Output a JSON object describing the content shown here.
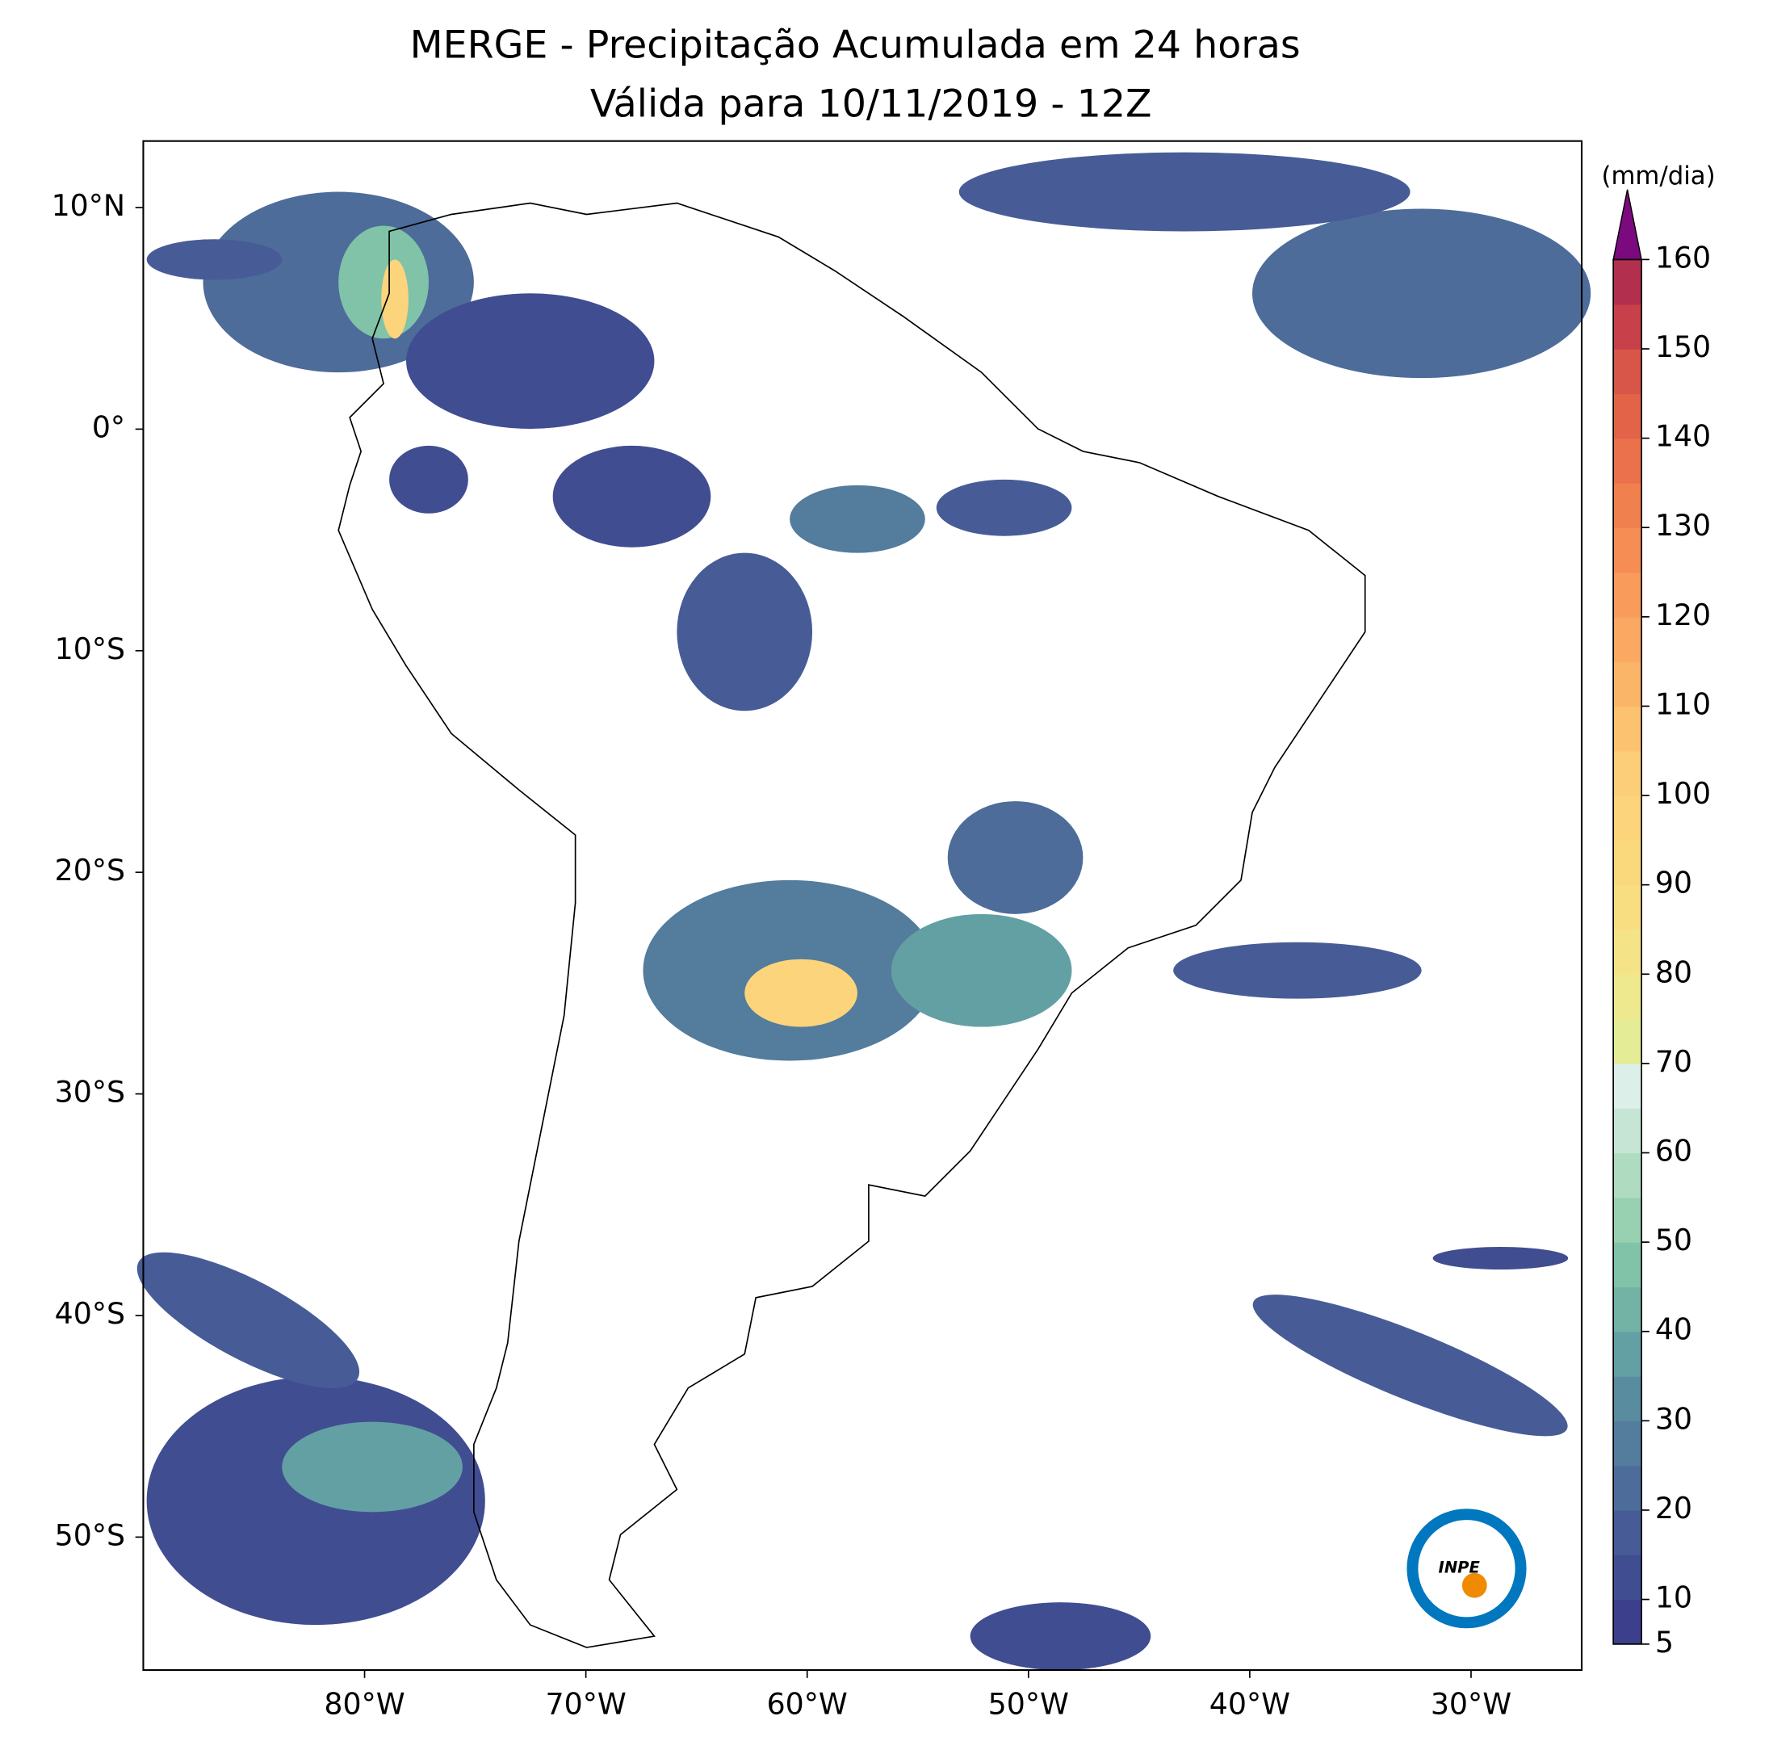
{
  "map": {
    "title": "MERGE - Precipitação Acumulada em 24 horas",
    "subtitle": "Válida para 10/11/2019 - 12Z",
    "xlim": [
      -90,
      -25
    ],
    "ylim": [
      -56,
      13
    ],
    "xticks": [
      {
        "value": -80,
        "label": "80°W"
      },
      {
        "value": -70,
        "label": "70°W"
      },
      {
        "value": -60,
        "label": "60°W"
      },
      {
        "value": -50,
        "label": "50°W"
      },
      {
        "value": -40,
        "label": "40°W"
      },
      {
        "value": -30,
        "label": "30°W"
      }
    ],
    "yticks": [
      {
        "value": 10,
        "label": "10°N"
      },
      {
        "value": 0,
        "label": "0°"
      },
      {
        "value": -10,
        "label": "10°S"
      },
      {
        "value": -20,
        "label": "20°S"
      },
      {
        "value": -30,
        "label": "30°S"
      },
      {
        "value": -40,
        "label": "40°S"
      },
      {
        "value": -50,
        "label": "50°S"
      }
    ],
    "colorbar": {
      "label": "(mm/dia)",
      "lim": [
        5,
        160
      ],
      "ticks": [
        5,
        10,
        20,
        30,
        40,
        50,
        60,
        70,
        80,
        90,
        100,
        110,
        120,
        130,
        140,
        150,
        160
      ],
      "colors": [
        "#3b3f8c",
        "#414d91",
        "#475c96",
        "#4d6c9a",
        "#537c9d",
        "#5a8ca0",
        "#63a0a4",
        "#72b3a6",
        "#80c3a8",
        "#98d0b2",
        "#afdbc0",
        "#c7e5d4",
        "#dcefe9",
        "#e4ed95",
        "#eee98e",
        "#f4e487",
        "#f8de81",
        "#fad97d",
        "#fcd47b",
        "#fdce79",
        "#fcc270",
        "#fbb569",
        "#faa862",
        "#f89b5b",
        "#f58d55",
        "#f1804f",
        "#ea714b",
        "#e26348",
        "#d85649",
        "#c8404a",
        "#b2304e"
      ],
      "extend_color": "#7b0a7f"
    },
    "logo": "INPE"
  }
}
